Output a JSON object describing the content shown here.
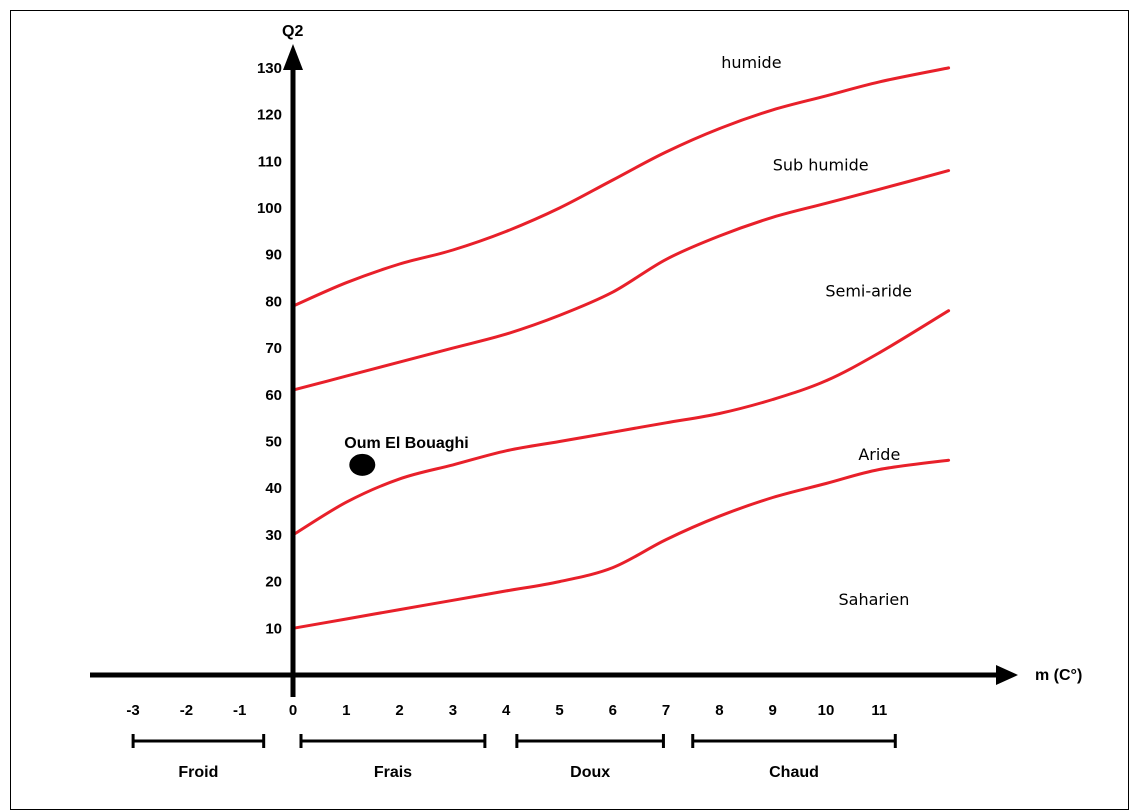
{
  "chart_data": {
    "type": "line",
    "xlabel": "m (C°)",
    "ylabel": "Q2",
    "x_ticks": [
      -3,
      -2,
      -1,
      0,
      1,
      2,
      3,
      4,
      5,
      6,
      7,
      8,
      9,
      10,
      11
    ],
    "y_ticks": [
      10,
      20,
      30,
      40,
      50,
      60,
      70,
      80,
      90,
      100,
      110,
      120,
      130
    ],
    "series": [
      {
        "x": [
          0,
          1,
          2,
          3,
          4,
          5,
          6,
          7,
          8,
          9,
          10,
          11,
          12.3
        ],
        "y": [
          79,
          84,
          88,
          91,
          95,
          100,
          106,
          112,
          117,
          121,
          124,
          127,
          130
        ]
      },
      {
        "x": [
          0,
          1,
          2,
          3,
          4,
          5,
          6,
          7,
          8,
          9,
          10,
          11,
          12.3
        ],
        "y": [
          61,
          64,
          67,
          70,
          73,
          77,
          82,
          89,
          94,
          98,
          101,
          104,
          108
        ]
      },
      {
        "x": [
          0,
          1,
          2,
          3,
          4,
          5,
          6,
          7,
          8,
          9,
          10,
          11,
          12.3
        ],
        "y": [
          30,
          37,
          42,
          45,
          48,
          50,
          52,
          54,
          56,
          59,
          63,
          69,
          78
        ]
      },
      {
        "x": [
          0,
          1,
          2,
          3,
          4,
          5,
          6,
          7,
          8,
          9,
          10,
          11,
          12.3
        ],
        "y": [
          10,
          12,
          14,
          16,
          18,
          20,
          23,
          29,
          34,
          38,
          41,
          44,
          46
        ]
      }
    ],
    "regions": [
      {
        "label": "humide",
        "x": 8.6,
        "y": 130
      },
      {
        "label": "Sub humide",
        "x": 9.9,
        "y": 108
      },
      {
        "label": "Semi-aride",
        "x": 10.8,
        "y": 81
      },
      {
        "label": "Aride",
        "x": 11.0,
        "y": 46
      },
      {
        "label": "Saharien",
        "x": 10.9,
        "y": 15
      }
    ],
    "point": {
      "label": "Oum El Bouaghi",
      "x": 1.3,
      "y": 45
    },
    "zones": [
      {
        "label": "Froid",
        "from": -3,
        "to": -0.55
      },
      {
        "label": "Frais",
        "from": 0.15,
        "to": 3.6
      },
      {
        "label": "Doux",
        "from": 4.2,
        "to": 6.95
      },
      {
        "label": "Chaud",
        "from": 7.5,
        "to": 11.3
      }
    ],
    "curve_color": "#e8202a",
    "axis_color": "#000000",
    "xlim": [
      -3.8,
      13.5
    ],
    "ylim": [
      0,
      137
    ]
  }
}
